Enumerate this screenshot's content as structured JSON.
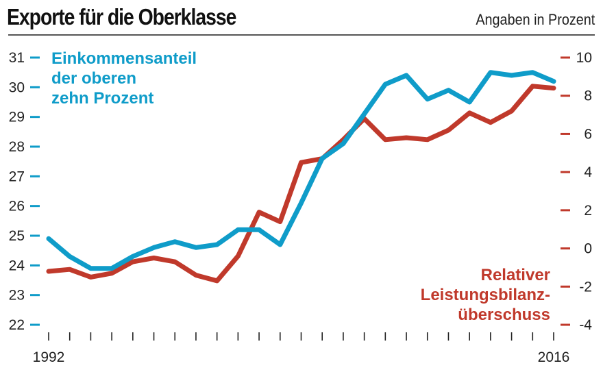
{
  "header": {
    "title": "Exporte für die Oberklasse",
    "unit_note": "Angaben in Prozent"
  },
  "colors": {
    "blue": "#0f9cc9",
    "red": "#c0392b",
    "text": "#222222"
  },
  "chart_data": {
    "type": "line",
    "title": "Exporte für die Oberklasse",
    "subtitle": "Angaben in Prozent",
    "x": [
      1992,
      1993,
      1994,
      1995,
      1996,
      1997,
      1998,
      1999,
      2000,
      2001,
      2002,
      2003,
      2004,
      2005,
      2006,
      2007,
      2008,
      2009,
      2010,
      2011,
      2012,
      2013,
      2014,
      2015,
      2016
    ],
    "x_tick_labels": [
      "1992",
      "2016"
    ],
    "left_axis": {
      "ylim": [
        22,
        31
      ],
      "ticks": [
        "31",
        "30",
        "29",
        "28",
        "27",
        "26",
        "25",
        "24",
        "23",
        "22"
      ]
    },
    "right_axis": {
      "ylim": [
        -4,
        10
      ],
      "ticks": [
        "10",
        "8",
        "6",
        "4",
        "2",
        "0",
        "-2",
        "-4"
      ]
    },
    "grid": false,
    "series": [
      {
        "name": "Einkommensanteil der oberen zehn Prozent",
        "label_lines": [
          "Einkommensanteil",
          "der oberen",
          "zehn Prozent"
        ],
        "axis": "left",
        "color": "#0f9cc9",
        "values": [
          24.9,
          24.3,
          23.9,
          23.9,
          24.3,
          24.6,
          24.8,
          24.6,
          24.7,
          25.2,
          25.2,
          24.7,
          26.1,
          27.6,
          28.1,
          29.1,
          30.1,
          30.4,
          29.6,
          29.9,
          29.5,
          30.5,
          30.4,
          30.5,
          30.2
        ]
      },
      {
        "name": "Relativer Leistungsbilanzüberschuss",
        "label_lines": [
          "Relativer",
          "Leistungsbilanz-",
          "überschuss"
        ],
        "axis": "right",
        "color": "#c0392b",
        "values": [
          -1.2,
          -1.1,
          -1.5,
          -1.3,
          -0.7,
          -0.5,
          -0.7,
          -1.4,
          -1.7,
          -0.4,
          1.9,
          1.4,
          4.5,
          4.7,
          5.7,
          6.8,
          5.7,
          5.8,
          5.7,
          6.2,
          7.1,
          6.6,
          7.2,
          8.5,
          8.4
        ]
      }
    ]
  }
}
